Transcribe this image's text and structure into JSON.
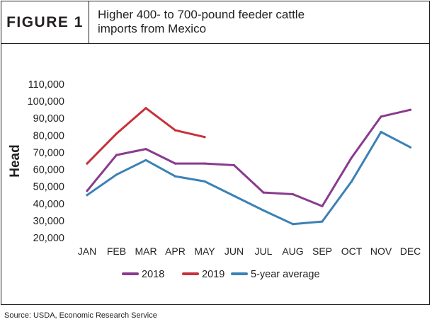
{
  "figure": {
    "label": "FIGURE 1",
    "title": "Higher 400- to 700-pound feeder cattle imports from Mexico"
  },
  "source": "Source: USDA, Economic Research Service",
  "chart_data": {
    "type": "line",
    "title": "Higher 400- to 700-pound feeder cattle imports from Mexico",
    "xlabel": "",
    "ylabel": "Head",
    "categories": [
      "JAN",
      "FEB",
      "MAR",
      "APR",
      "MAY",
      "JUN",
      "JUL",
      "AUG",
      "SEP",
      "OCT",
      "NOV",
      "DEC"
    ],
    "ylim": [
      20000,
      110000
    ],
    "yticks": [
      "20,000",
      "30,000",
      "40,000",
      "50,000",
      "60,000",
      "70,000",
      "80,000",
      "90,000",
      "100,000",
      "110,000"
    ],
    "grid": false,
    "legend": "bottom",
    "series": [
      {
        "name": "2018",
        "color": "#8b3a8f",
        "values": [
          47500,
          68500,
          72000,
          63500,
          63500,
          62500,
          46500,
          45500,
          38500,
          67000,
          91000,
          95000
        ]
      },
      {
        "name": "2019",
        "color": "#c8313a",
        "values": [
          63500,
          81000,
          96000,
          83000,
          79000,
          null,
          null,
          null,
          null,
          null,
          null,
          null
        ]
      },
      {
        "name": "5-year average",
        "color": "#3b82b5",
        "values": [
          45000,
          57000,
          65500,
          56000,
          53000,
          44500,
          36000,
          28000,
          29500,
          53000,
          82000,
          73000
        ]
      }
    ]
  }
}
